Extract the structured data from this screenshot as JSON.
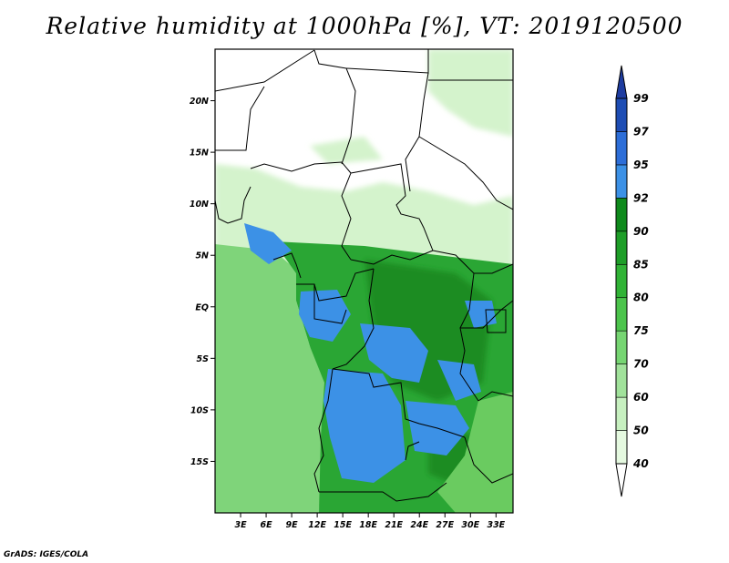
{
  "title": "Relative humidity at 1000hPa [%], VT: 2019120500",
  "credit": "GrADS: IGES/COLA",
  "map": {
    "lon_range": [
      0,
      35
    ],
    "lat_range": [
      -20,
      25
    ],
    "lat_ticks": [
      {
        "value": 20,
        "label": "20N"
      },
      {
        "value": 15,
        "label": "15N"
      },
      {
        "value": 10,
        "label": "10N"
      },
      {
        "value": 5,
        "label": "5N"
      },
      {
        "value": 0,
        "label": "EQ"
      },
      {
        "value": -5,
        "label": "5S"
      },
      {
        "value": -10,
        "label": "10S"
      },
      {
        "value": -15,
        "label": "15S"
      }
    ],
    "lon_ticks": [
      {
        "value": 3,
        "label": "3E"
      },
      {
        "value": 6,
        "label": "6E"
      },
      {
        "value": 9,
        "label": "9E"
      },
      {
        "value": 12,
        "label": "12E"
      },
      {
        "value": 15,
        "label": "15E"
      },
      {
        "value": 18,
        "label": "18E"
      },
      {
        "value": 21,
        "label": "21E"
      },
      {
        "value": 24,
        "label": "24E"
      },
      {
        "value": 27,
        "label": "27E"
      },
      {
        "value": 30,
        "label": "30E"
      },
      {
        "value": 33,
        "label": "33E"
      }
    ]
  },
  "colorbar": {
    "levels": [
      "40",
      "50",
      "60",
      "70",
      "75",
      "80",
      "85",
      "90",
      "92",
      "95",
      "97",
      "99"
    ],
    "colors": [
      "#ffffff",
      "#e5f9e0",
      "#c7f0c0",
      "#a1e29b",
      "#76d572",
      "#4cc44c",
      "#31b336",
      "#1e9e28",
      "#0f8a1c",
      "#3c91e6",
      "#2d6ed8",
      "#1e4db4",
      "#1e3ca0"
    ]
  },
  "colors": {
    "ocean": "#7fd47a",
    "sahel_light": "#d4f3cc",
    "forest": "#2aa634",
    "forest_dark": "#1a8c22",
    "very_humid": "#3c91e6",
    "east_africa": "#6acb60"
  }
}
